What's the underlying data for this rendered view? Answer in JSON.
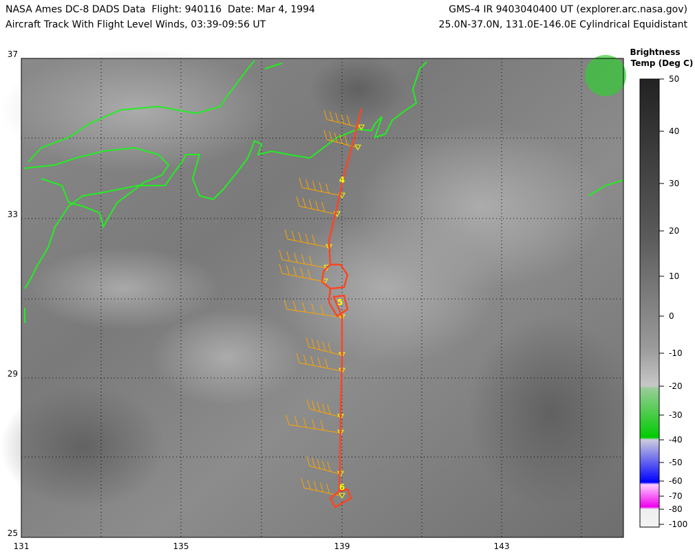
{
  "header": {
    "left": [
      "NASA Ames DC-8 DADS Data  Flight: 940116  Date: Mar 4, 1994",
      "Aircraft Track With Flight Level Winds, 03:39-09:56 UT"
    ],
    "right": [
      "GMS-4 IR 9403040400 UT (explorer.arc.nasa.gov)",
      "25.0N-37.0N, 131.0E-146.0E Cylindrical Equidistant"
    ]
  },
  "map": {
    "lat_labels": [
      "37",
      "33",
      "29",
      "25"
    ],
    "lon_labels": [
      "131",
      "135",
      "139",
      "143"
    ],
    "track_labels": [
      "4",
      "5",
      "6"
    ]
  },
  "colorbar": {
    "title": [
      "Brightness",
      "Temp (Deg C)"
    ],
    "labels": [
      "50",
      "40",
      "30",
      "20",
      "10",
      "0",
      "-10",
      "-20",
      "-30",
      "-40",
      "-50",
      "-60",
      "-70",
      "-80",
      "-100"
    ]
  }
}
